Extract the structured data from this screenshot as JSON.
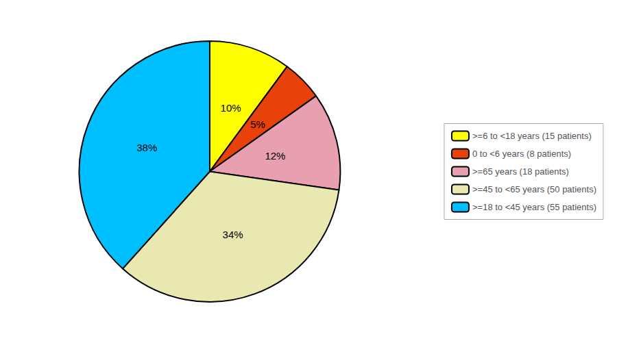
{
  "chart_data": {
    "type": "pie",
    "categories": [
      ">=6 to <18 years (15 patients)",
      "0 to <6 years (8 patients)",
      ">=65 years (18 patients)",
      ">=45 to <65 years (50 patients)",
      ">=18 to <45 years (55 patients)"
    ],
    "values": [
      10,
      5,
      12,
      34,
      38
    ],
    "value_labels": [
      "10%",
      "5%",
      "12%",
      "34%",
      "38%"
    ],
    "colors": [
      "#FFFF00",
      "#E8420A",
      "#E8A0B0",
      "#E8E8B0",
      "#00BFFF"
    ],
    "data_labels": true,
    "legend": "right"
  }
}
